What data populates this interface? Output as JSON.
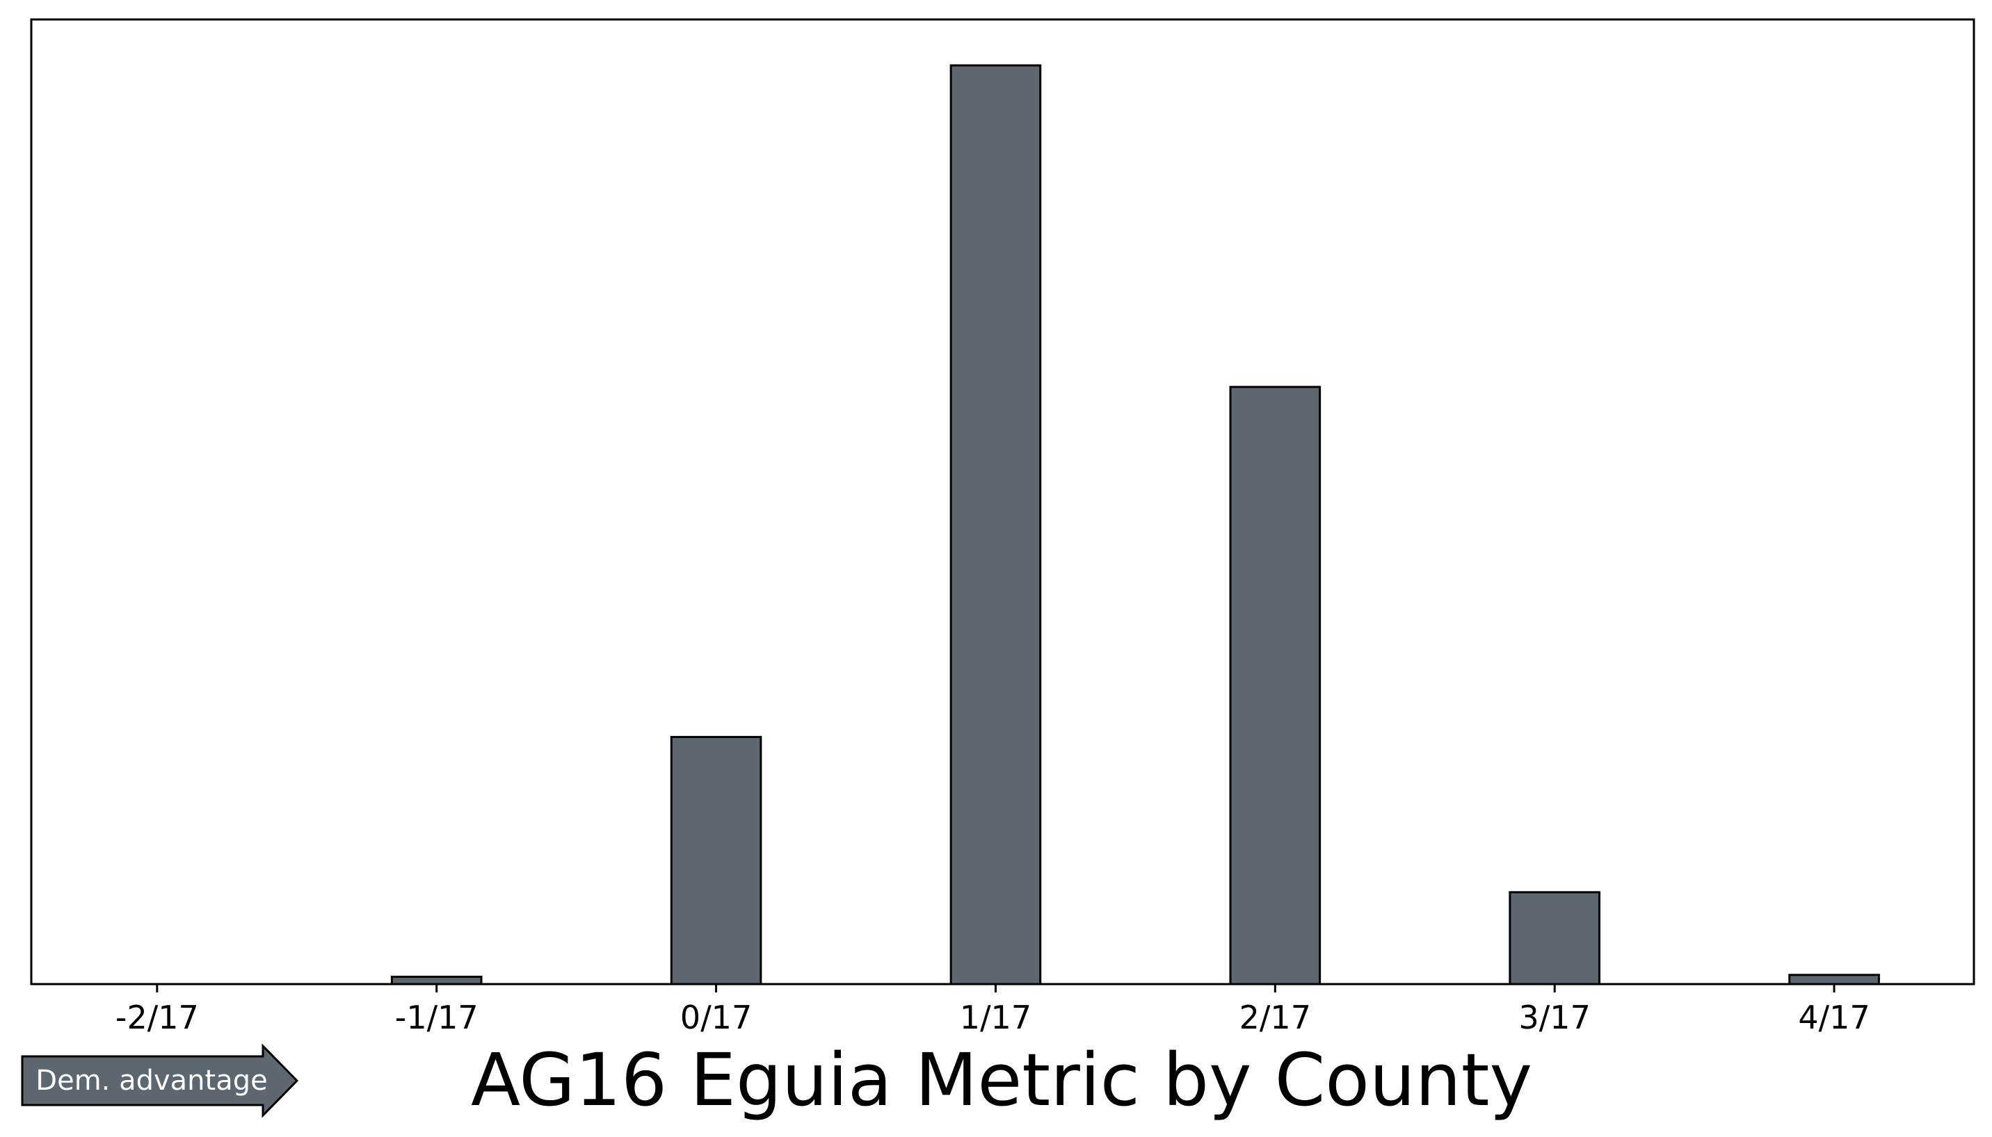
{
  "chart_data": {
    "type": "bar",
    "title": "AG16 Eguia Metric by County",
    "xlabel": "",
    "ylabel": "",
    "x_ticks": [
      "-2/17",
      "-1/17",
      "0/17",
      "1/17",
      "2/17",
      "3/17",
      "4/17"
    ],
    "x_tick_values": [
      -2,
      -1,
      0,
      1,
      2,
      3,
      4
    ],
    "xlim": [
      -2.45,
      4.5
    ],
    "bins": [
      {
        "x": -2.0,
        "value": 0
      },
      {
        "x": -1.5,
        "value": 0
      },
      {
        "x": -1.0,
        "value": 8
      },
      {
        "x": -0.5,
        "value": 0
      },
      {
        "x": 0.0,
        "value": 269
      },
      {
        "x": 0.5,
        "value": 0
      },
      {
        "x": 1.0,
        "value": 1000
      },
      {
        "x": 1.5,
        "value": 0
      },
      {
        "x": 2.0,
        "value": 650
      },
      {
        "x": 2.5,
        "value": 0
      },
      {
        "x": 3.0,
        "value": 100
      },
      {
        "x": 3.5,
        "value": 0
      },
      {
        "x": 4.0,
        "value": 10
      }
    ],
    "ylim": [
      0,
      1050
    ],
    "y_ticks_visible": false,
    "grid": false,
    "bar_color": "#5c6770",
    "edge_color": "#000000"
  },
  "annotation": {
    "arrow_label": "Dem. advantage",
    "arrow_color": "#5c6770"
  }
}
